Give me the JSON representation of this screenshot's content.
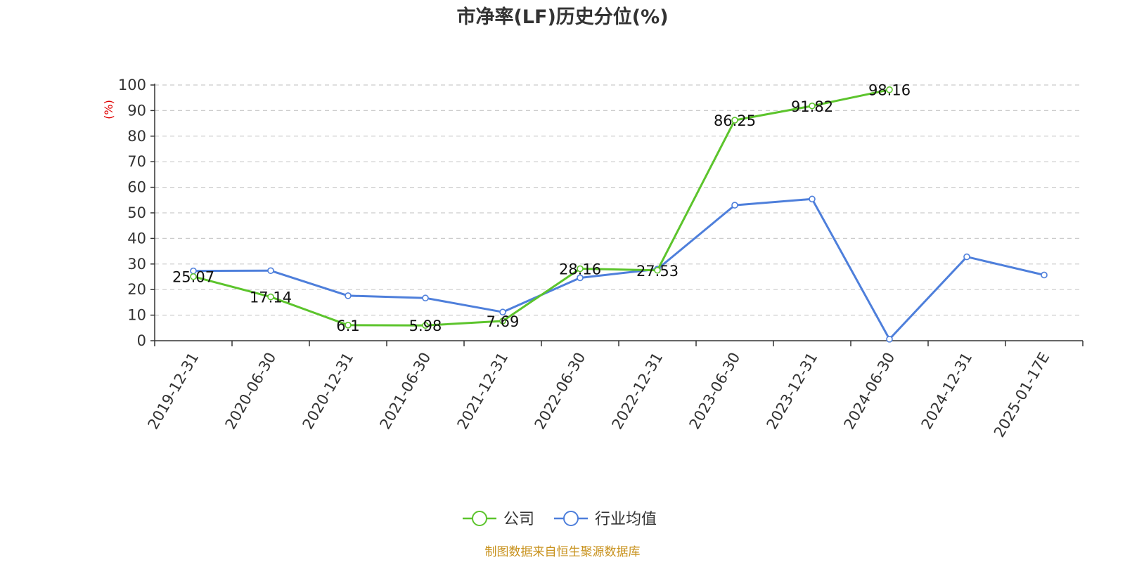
{
  "chart_data": {
    "type": "line",
    "title": "市净率(LF)历史分位(%)",
    "ylabel": "(%)",
    "xlabel": "",
    "ylim": [
      0,
      100
    ],
    "yticks": [
      0,
      10,
      20,
      30,
      40,
      50,
      60,
      70,
      80,
      90,
      100
    ],
    "grid": true,
    "legend_placement": "bottom-center",
    "categories": [
      "2019-12-31",
      "2020-06-30",
      "2020-12-31",
      "2021-06-30",
      "2021-12-31",
      "2022-06-30",
      "2022-12-31",
      "2023-06-30",
      "2023-12-31",
      "2024-06-30",
      "2024-12-31",
      "2025-01-17E"
    ],
    "series": [
      {
        "name": "公司",
        "color": "#5cc42c",
        "values": [
          25.07,
          17.14,
          6.1,
          5.98,
          7.69,
          28.16,
          27.53,
          86.25,
          91.82,
          98.16,
          null,
          null
        ],
        "labels": [
          "25.07",
          "17.14",
          "6.1",
          "5.98",
          "7.69",
          "28.16",
          "27.53",
          "86.25",
          "91.82",
          "98.16",
          "",
          ""
        ]
      },
      {
        "name": "行业均值",
        "color": "#4e7fdb",
        "values": [
          27.3,
          27.4,
          17.6,
          16.7,
          11.2,
          24.6,
          28.0,
          53.0,
          55.4,
          0.6,
          32.8,
          25.7
        ]
      }
    ],
    "source": "制图数据来自恒生聚源数据库"
  }
}
